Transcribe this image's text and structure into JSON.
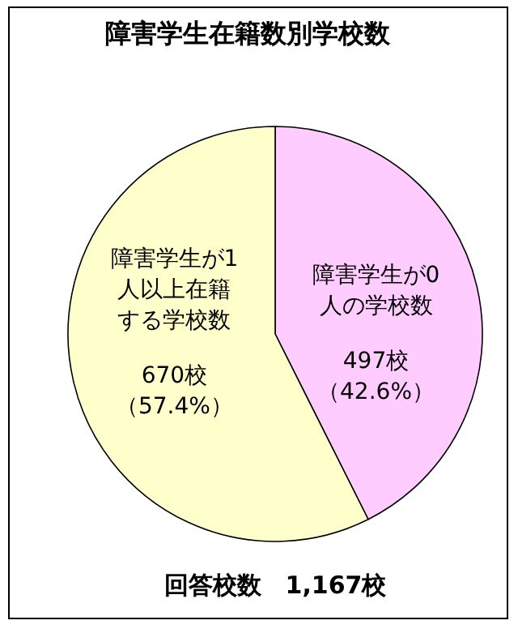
{
  "chart_data": {
    "type": "pie",
    "title": "障害学生在籍数別学校数",
    "categories": [
      "障害学生が0人の学校数",
      "障害学生が1人以上在籍する学校数"
    ],
    "values": [
      497,
      670
    ],
    "value_labels": [
      "497校（42.6%）",
      "670校（57.4%）"
    ],
    "colors": [
      "#ffccff",
      "#ffffcc"
    ],
    "annotations": [
      "回答校数　1,167校"
    ]
  }
}
